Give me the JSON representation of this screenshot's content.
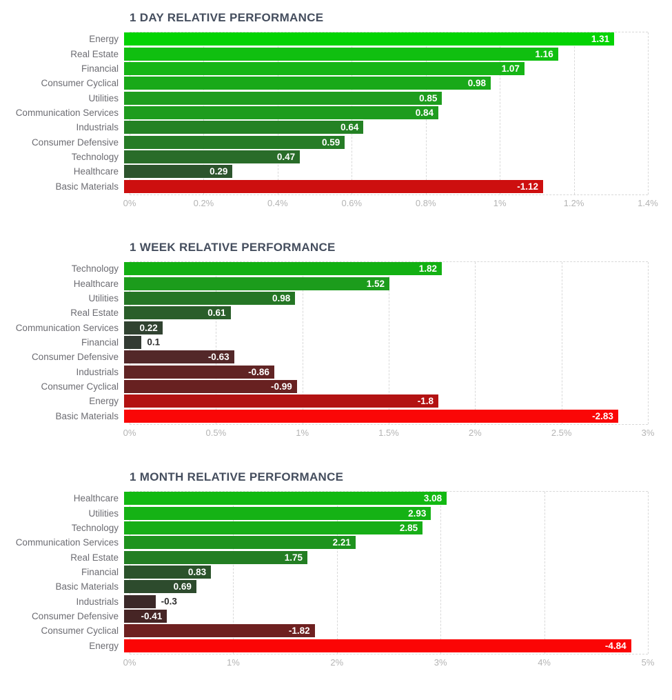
{
  "style": {
    "title_color": "#454e5e",
    "category_label_color": "#6c6c72",
    "axis_label_color": "#b4b4b4",
    "grid_color": "#d8d8d8",
    "value_inside_color": "#ffffff",
    "value_outside_color": "#2d2d2d"
  },
  "chart_data": [
    {
      "type": "bar",
      "orientation": "horizontal",
      "title": "1 DAY RELATIVE PERFORMANCE",
      "xlabel": "",
      "ylabel": "",
      "xlim": [
        0,
        1.4
      ],
      "grid": "dashed-vertical",
      "x_ticks": [
        {
          "value": 0,
          "label": "0%"
        },
        {
          "value": 0.2,
          "label": "0.2%"
        },
        {
          "value": 0.4,
          "label": "0.4%"
        },
        {
          "value": 0.6,
          "label": "0.6%"
        },
        {
          "value": 0.8,
          "label": "0.8%"
        },
        {
          "value": 1,
          "label": "1%"
        },
        {
          "value": 1.2,
          "label": "1.2%"
        },
        {
          "value": 1.4,
          "label": "1.4%"
        }
      ],
      "bars": [
        {
          "label": "Energy",
          "value": 1.31,
          "value_label": "1.31",
          "color": "#04d304"
        },
        {
          "label": "Real Estate",
          "value": 1.16,
          "value_label": "1.16",
          "color": "#10bf10"
        },
        {
          "label": "Financial",
          "value": 1.07,
          "value_label": "1.07",
          "color": "#16b516"
        },
        {
          "label": "Consumer Cyclical",
          "value": 0.98,
          "value_label": "0.98",
          "color": "#19a919"
        },
        {
          "label": "Utilities",
          "value": 0.85,
          "value_label": "0.85",
          "color": "#1e9d1e"
        },
        {
          "label": "Communication Services",
          "value": 0.84,
          "value_label": "0.84",
          "color": "#1e9c1e"
        },
        {
          "label": "Industrials",
          "value": 0.64,
          "value_label": "0.64",
          "color": "#248224"
        },
        {
          "label": "Consumer Defensive",
          "value": 0.59,
          "value_label": "0.59",
          "color": "#267c26"
        },
        {
          "label": "Technology",
          "value": 0.47,
          "value_label": "0.47",
          "color": "#296c29"
        },
        {
          "label": "Healthcare",
          "value": 0.29,
          "value_label": "0.29",
          "color": "#2d542d"
        },
        {
          "label": "Basic Materials",
          "value": -1.12,
          "value_label": "-1.12",
          "color": "#cd0f0f"
        }
      ]
    },
    {
      "type": "bar",
      "orientation": "horizontal",
      "title": "1 WEEK RELATIVE PERFORMANCE",
      "xlabel": "",
      "ylabel": "",
      "xlim": [
        0,
        3
      ],
      "grid": "dashed-vertical",
      "x_ticks": [
        {
          "value": 0,
          "label": "0%"
        },
        {
          "value": 0.5,
          "label": "0.5%"
        },
        {
          "value": 1,
          "label": "1%"
        },
        {
          "value": 1.5,
          "label": "1.5%"
        },
        {
          "value": 2,
          "label": "2%"
        },
        {
          "value": 2.5,
          "label": "2.5%"
        },
        {
          "value": 3,
          "label": "3%"
        }
      ],
      "bars": [
        {
          "label": "Technology",
          "value": 1.82,
          "value_label": "1.82",
          "color": "#13b013"
        },
        {
          "label": "Healthcare",
          "value": 1.52,
          "value_label": "1.52",
          "color": "#1c9c1c"
        },
        {
          "label": "Utilities",
          "value": 0.98,
          "value_label": "0.98",
          "color": "#257625"
        },
        {
          "label": "Real Estate",
          "value": 0.61,
          "value_label": "0.61",
          "color": "#2a5e2a"
        },
        {
          "label": "Communication Services",
          "value": 0.22,
          "value_label": "0.22",
          "color": "#314331"
        },
        {
          "label": "Financial",
          "value": 0.1,
          "value_label": "0.1",
          "color": "#333b33"
        },
        {
          "label": "Consumer Defensive",
          "value": -0.63,
          "value_label": "-0.63",
          "color": "#532829"
        },
        {
          "label": "Industrials",
          "value": -0.86,
          "value_label": "-0.86",
          "color": "#612424"
        },
        {
          "label": "Consumer Cyclical",
          "value": -0.99,
          "value_label": "-0.99",
          "color": "#682121"
        },
        {
          "label": "Energy",
          "value": -1.8,
          "value_label": "-1.8",
          "color": "#b31212"
        },
        {
          "label": "Basic Materials",
          "value": -2.83,
          "value_label": "-2.83",
          "color": "#fa0707"
        }
      ]
    },
    {
      "type": "bar",
      "orientation": "horizontal",
      "title": "1 MONTH RELATIVE PERFORMANCE",
      "xlabel": "",
      "ylabel": "",
      "xlim": [
        0,
        5
      ],
      "grid": "dashed-vertical",
      "x_ticks": [
        {
          "value": 0,
          "label": "0%"
        },
        {
          "value": 1,
          "label": "1%"
        },
        {
          "value": 2,
          "label": "2%"
        },
        {
          "value": 3,
          "label": "3%"
        },
        {
          "value": 4,
          "label": "4%"
        },
        {
          "value": 5,
          "label": "5%"
        }
      ],
      "bars": [
        {
          "label": "Healthcare",
          "value": 3.08,
          "value_label": "3.08",
          "color": "#12b912"
        },
        {
          "label": "Utilities",
          "value": 2.93,
          "value_label": "2.93",
          "color": "#15b215"
        },
        {
          "label": "Technology",
          "value": 2.85,
          "value_label": "2.85",
          "color": "#17ae17"
        },
        {
          "label": "Communication Services",
          "value": 2.21,
          "value_label": "2.21",
          "color": "#1e931e"
        },
        {
          "label": "Real Estate",
          "value": 1.75,
          "value_label": "1.75",
          "color": "#237e23"
        },
        {
          "label": "Financial",
          "value": 0.83,
          "value_label": "0.83",
          "color": "#2b532b"
        },
        {
          "label": "Basic Materials",
          "value": 0.69,
          "value_label": "0.69",
          "color": "#2d4b2d"
        },
        {
          "label": "Industrials",
          "value": -0.3,
          "value_label": "-0.3",
          "color": "#3b2929"
        },
        {
          "label": "Consumer Defensive",
          "value": -0.41,
          "value_label": "-0.41",
          "color": "#462525"
        },
        {
          "label": "Consumer Cyclical",
          "value": -1.82,
          "value_label": "-1.82",
          "color": "#6e2020"
        },
        {
          "label": "Energy",
          "value": -4.84,
          "value_label": "-4.84",
          "color": "#fb0505"
        }
      ]
    }
  ]
}
